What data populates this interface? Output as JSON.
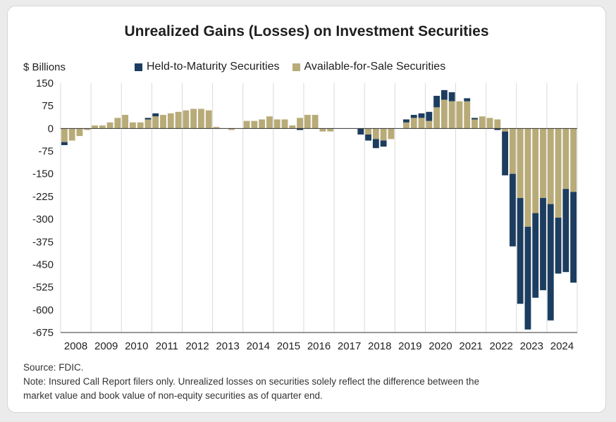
{
  "chart_data": {
    "type": "bar",
    "stacked": true,
    "title": "Unrealized Gains (Losses) on Investment Securities",
    "ylabel": "$ Billions",
    "ylim": [
      -675,
      150
    ],
    "yticks": [
      "150",
      "75",
      "0",
      "-75",
      "-150",
      "-225",
      "-300",
      "-375",
      "-450",
      "-525",
      "-600",
      "-675"
    ],
    "x_year_labels": [
      "2008",
      "2009",
      "2010",
      "2011",
      "2012",
      "2013",
      "2014",
      "2015",
      "2016",
      "2017",
      "2018",
      "2019",
      "2020",
      "2021",
      "2022",
      "2023",
      "2024"
    ],
    "legend_position": "top",
    "grid": "vertical",
    "colors": {
      "htm": "#1c3d5f",
      "afs": "#b8ab78",
      "grid": "#d9d9d9",
      "axis": "#333333"
    },
    "series": [
      {
        "name": "Held-to-Maturity Securities",
        "values": [
          0,
          0,
          0,
          0,
          0,
          5,
          -15,
          -10,
          0,
          0,
          0,
          0,
          0,
          0,
          0,
          0,
          0,
          0,
          0,
          0,
          0,
          0,
          0,
          0,
          0,
          0,
          0,
          0,
          0,
          -10,
          0,
          0,
          0,
          0,
          0,
          0,
          0,
          0,
          0,
          0,
          5,
          10,
          0,
          0,
          0,
          0,
          0,
          0,
          0,
          0,
          0,
          0,
          0,
          0,
          0,
          0,
          0,
          0,
          0,
          0,
          -5,
          0,
          0,
          0,
          0,
          0,
          0,
          0,
          -20,
          -20,
          -30,
          -20,
          0,
          0,
          10,
          10,
          15,
          30,
          38,
          32,
          30,
          0,
          10,
          5,
          0,
          0,
          -5,
          -145,
          -240,
          -350,
          -340,
          -280,
          -305,
          -385,
          -185,
          -275,
          -300
        ]
      },
      {
        "name": "Available-for-Sale Securities",
        "values": [
          -20,
          -40,
          -60,
          -60,
          -45,
          -40,
          -25,
          -5,
          10,
          10,
          20,
          35,
          45,
          20,
          20,
          30,
          40,
          45,
          50,
          55,
          60,
          65,
          65,
          60,
          5,
          0,
          -5,
          0,
          25,
          25,
          30,
          40,
          30,
          30,
          10,
          35,
          45,
          45,
          -10,
          -10,
          0,
          0,
          0,
          0,
          -20,
          -35,
          -40,
          -35,
          0,
          20,
          35,
          35,
          25,
          70,
          95,
          90,
          90,
          90,
          30,
          40,
          35,
          30,
          -10,
          -150,
          -230,
          -325,
          -280,
          -230,
          -250,
          -295,
          -200,
          -210
        ]
      }
    ]
  },
  "source_note": "Source: FDIC.",
  "footnote_line1": "Note: Insured Call Report filers only. Unrealized losses on securities solely reflect the difference between the",
  "footnote_line2": "market value and book value of non-equity securities as of quarter end."
}
